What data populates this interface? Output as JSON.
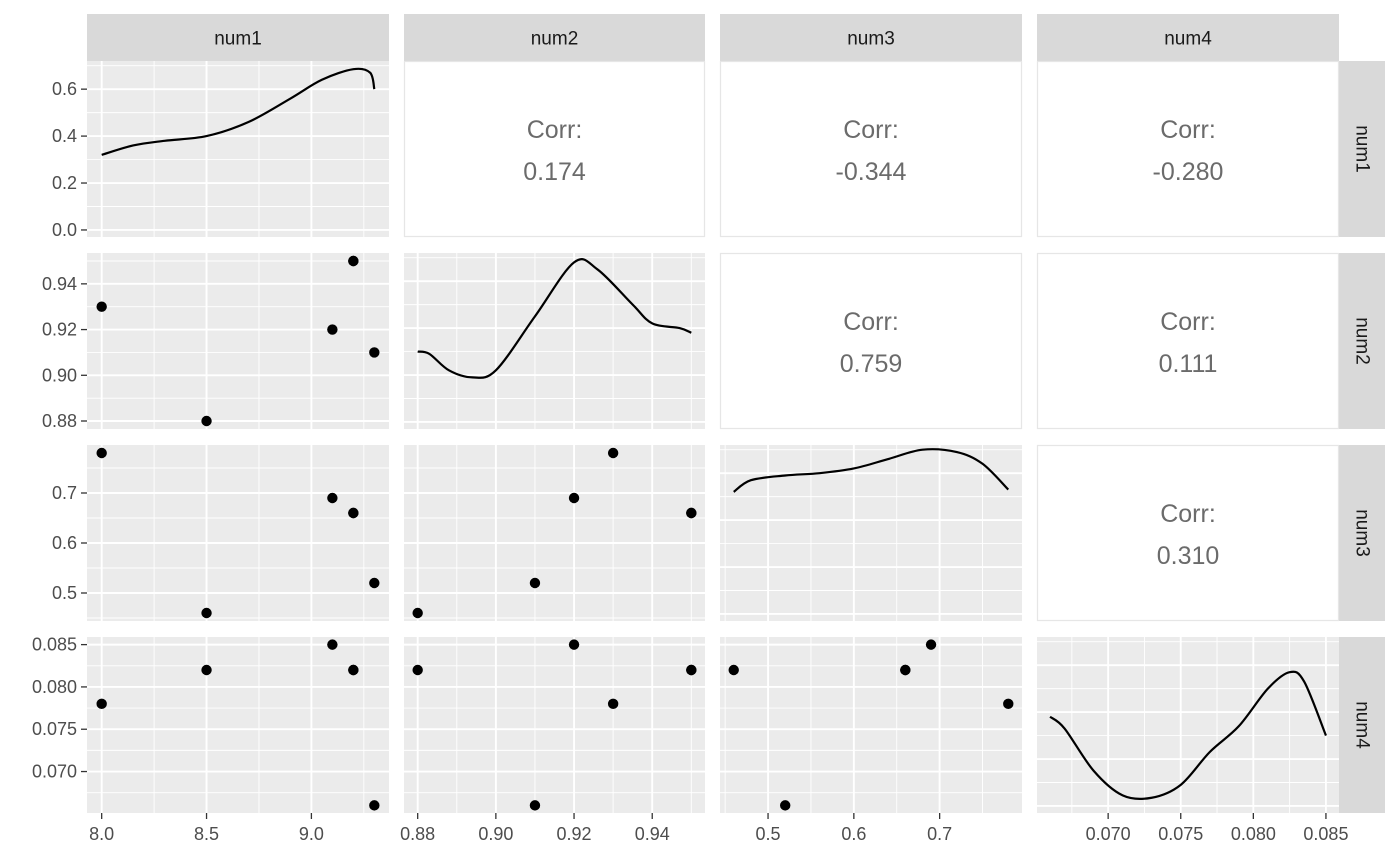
{
  "chart_data": {
    "type": "scatter",
    "variables": [
      "num1",
      "num2",
      "num3",
      "num4"
    ],
    "observations": {
      "num1": [
        8.0,
        8.5,
        9.1,
        9.2,
        9.2,
        9.3
      ],
      "num2": [
        0.93,
        0.88,
        0.92,
        0.95,
        0.95,
        0.91
      ],
      "num3": [
        0.78,
        0.46,
        0.69,
        0.66,
        0.66,
        0.52
      ],
      "num4": [
        0.078,
        0.082,
        0.085,
        0.082,
        0.082,
        0.066
      ]
    },
    "axes": {
      "num1": {
        "range": [
          7.93,
          9.37
        ],
        "ticks": [
          8.0,
          8.5,
          9.0
        ],
        "tick_labels": [
          "8.0",
          "8.5",
          "9.0"
        ]
      },
      "num2": {
        "range": [
          0.8765,
          0.9535
        ],
        "ticks": [
          0.88,
          0.9,
          0.92,
          0.94
        ],
        "tick_labels": [
          "0.88",
          "0.90",
          "0.92",
          "0.94"
        ]
      },
      "num3": {
        "range": [
          0.444,
          0.796
        ],
        "ticks": [
          0.5,
          0.6,
          0.7
        ],
        "tick_labels": [
          "0.5",
          "0.6",
          "0.7"
        ]
      },
      "num4": {
        "range": [
          0.0651,
          0.0859
        ],
        "ticks": [
          0.07,
          0.075,
          0.08,
          0.085
        ],
        "tick_labels": [
          "0.070",
          "0.075",
          "0.080",
          "0.085"
        ]
      }
    },
    "density_axis": {
      "range": [
        -0.03,
        0.72
      ],
      "ticks": [
        0.0,
        0.2,
        0.4,
        0.6
      ],
      "tick_labels": [
        "0.0",
        "0.2",
        "0.4",
        "0.6"
      ]
    },
    "densities": {
      "num1": [
        [
          8.0,
          0.32
        ],
        [
          8.15,
          0.36
        ],
        [
          8.3,
          0.38
        ],
        [
          8.5,
          0.4
        ],
        [
          8.7,
          0.46
        ],
        [
          8.9,
          0.56
        ],
        [
          9.05,
          0.64
        ],
        [
          9.2,
          0.685
        ],
        [
          9.28,
          0.67
        ],
        [
          9.3,
          0.6
        ]
      ],
      "num2": [
        [
          0.88,
          0.3
        ],
        [
          0.883,
          0.29
        ],
        [
          0.888,
          0.22
        ],
        [
          0.894,
          0.19
        ],
        [
          0.9,
          0.22
        ],
        [
          0.91,
          0.45
        ],
        [
          0.92,
          0.68
        ],
        [
          0.926,
          0.65
        ],
        [
          0.935,
          0.5
        ],
        [
          0.94,
          0.42
        ],
        [
          0.947,
          0.4
        ],
        [
          0.95,
          0.38
        ]
      ],
      "num3": [
        [
          0.46,
          0.52
        ],
        [
          0.48,
          0.57
        ],
        [
          0.52,
          0.59
        ],
        [
          0.56,
          0.6
        ],
        [
          0.6,
          0.62
        ],
        [
          0.64,
          0.66
        ],
        [
          0.68,
          0.7
        ],
        [
          0.72,
          0.69
        ],
        [
          0.75,
          0.64
        ],
        [
          0.78,
          0.53
        ]
      ],
      "num4": [
        [
          0.066,
          0.38
        ],
        [
          0.067,
          0.33
        ],
        [
          0.069,
          0.15
        ],
        [
          0.071,
          0.045
        ],
        [
          0.073,
          0.035
        ],
        [
          0.075,
          0.09
        ],
        [
          0.077,
          0.23
        ],
        [
          0.079,
          0.34
        ],
        [
          0.081,
          0.5
        ],
        [
          0.0825,
          0.57
        ],
        [
          0.0835,
          0.53
        ],
        [
          0.085,
          0.3
        ]
      ]
    },
    "correlations": [
      {
        "row": "num1",
        "col": "num2",
        "label": "Corr:",
        "value": "0.174"
      },
      {
        "row": "num1",
        "col": "num3",
        "label": "Corr:",
        "value": "-0.344"
      },
      {
        "row": "num1",
        "col": "num4",
        "label": "Corr:",
        "value": "-0.280"
      },
      {
        "row": "num2",
        "col": "num3",
        "label": "Corr:",
        "value": "0.759"
      },
      {
        "row": "num2",
        "col": "num4",
        "label": "Corr:",
        "value": "0.111"
      },
      {
        "row": "num3",
        "col": "num4",
        "label": "Corr:",
        "value": "0.310"
      }
    ],
    "colors": {
      "panel_bg": "#ebebeb",
      "grid": "#ffffff",
      "strip_bg": "#d9d9d9",
      "points": "#000000",
      "corr_text": "#6b6b6b",
      "corr_border": "#e6e6e6",
      "axis_text": "#4d4d4d",
      "strip_text": "#1a1a1a"
    }
  }
}
